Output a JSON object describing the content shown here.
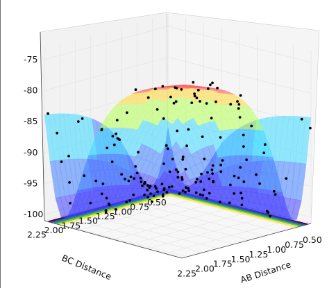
{
  "chart_data": {
    "type": "surface3d",
    "xlabel": "AB Distance",
    "ylabel": "BC Distance",
    "zlabel": "",
    "x_ticks": [
      "0.50",
      "0.75",
      "1.00",
      "1.25",
      "1.50",
      "1.75",
      "2.00",
      "2.25"
    ],
    "y_ticks": [
      "0.50",
      "0.75",
      "1.00",
      "1.25",
      "1.50",
      "1.75",
      "2.00",
      "2.25"
    ],
    "z_ticks": [
      "-75",
      "-80",
      "-85",
      "-90",
      "-95",
      "-100"
    ],
    "xlim": [
      0.5,
      2.3
    ],
    "ylim": [
      0.5,
      2.3
    ],
    "zlim": [
      -101,
      -73
    ],
    "surface_bands": [
      {
        "from": -101,
        "to": -95,
        "color": "#3f3fff"
      },
      {
        "from": -95,
        "to": -90,
        "color": "#3f7fff"
      },
      {
        "from": -90,
        "to": -85,
        "color": "#3fd9ff"
      },
      {
        "from": -85,
        "to": -80,
        "color": "#b6ff5a"
      },
      {
        "from": -80,
        "to": -77,
        "color": "#ffd93f"
      },
      {
        "from": -77,
        "to": -73,
        "color": "#ff5a5a"
      }
    ],
    "contour_colors": [
      "#440154",
      "#3b528b",
      "#21918c",
      "#5ec962",
      "#fde725"
    ],
    "scatter_color": "#000000",
    "grid": true
  }
}
